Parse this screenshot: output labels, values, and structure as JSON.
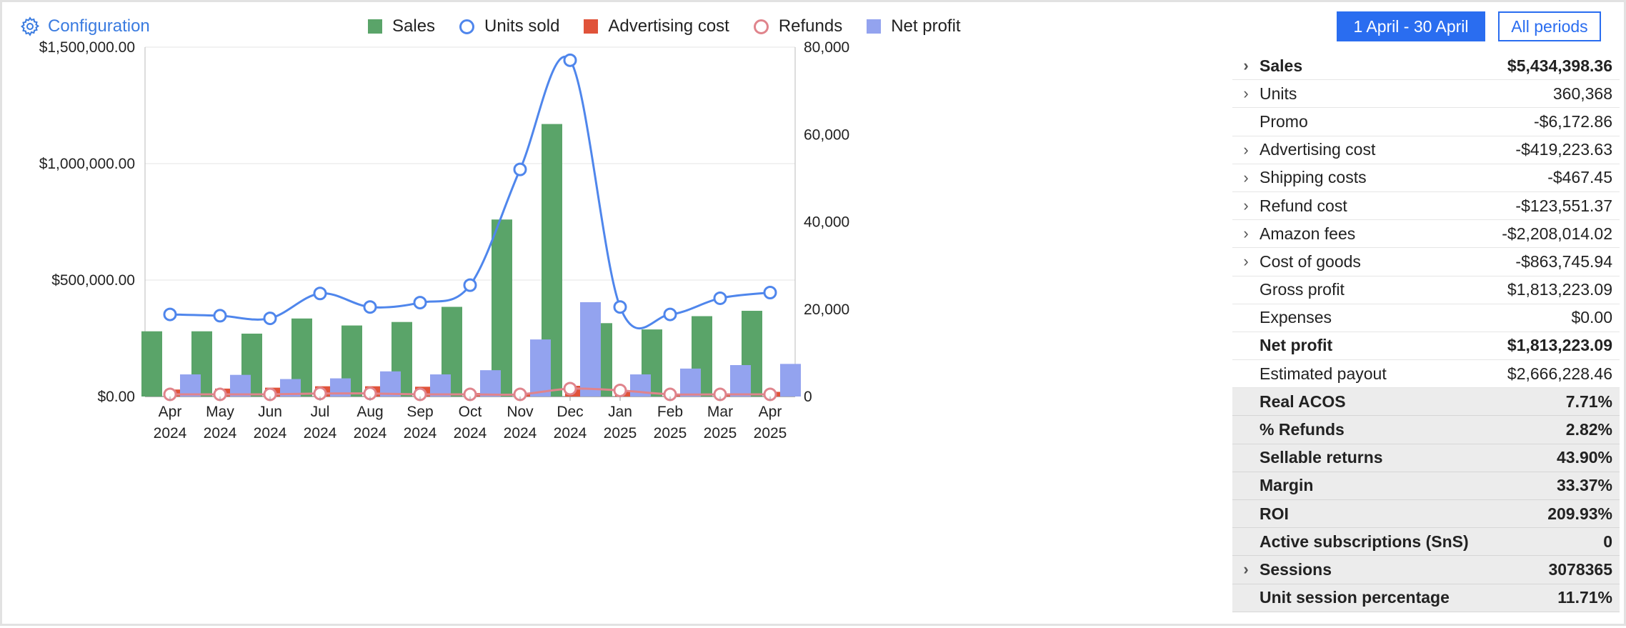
{
  "header": {
    "config_label": "Configuration",
    "config_icon": "gear-icon",
    "period_button": "1 April - 30 April",
    "all_periods_button": "All periods"
  },
  "legend": [
    {
      "name": "Sales",
      "kind": "bar",
      "color": "#5aa469"
    },
    {
      "name": "Units sold",
      "kind": "ring",
      "color": "#4f86ec"
    },
    {
      "name": "Advertising cost",
      "kind": "bar",
      "color": "#e0533a"
    },
    {
      "name": "Refunds",
      "kind": "ring",
      "color": "#e0848c"
    },
    {
      "name": "Net profit",
      "kind": "bar",
      "color": "#93a3ef"
    }
  ],
  "chart_data": {
    "type": "bar",
    "categories": [
      [
        "Apr",
        "2024"
      ],
      [
        "May",
        "2024"
      ],
      [
        "Jun",
        "2024"
      ],
      [
        "Jul",
        "2024"
      ],
      [
        "Aug",
        "2024"
      ],
      [
        "Sep",
        "2024"
      ],
      [
        "Oct",
        "2024"
      ],
      [
        "Nov",
        "2024"
      ],
      [
        "Dec",
        "2024"
      ],
      [
        "Jan",
        "2025"
      ],
      [
        "Feb",
        "2025"
      ],
      [
        "Mar",
        "2025"
      ],
      [
        "Apr",
        "2025"
      ]
    ],
    "left_axis": {
      "ticks": [
        "$0.00",
        "$500,000.00",
        "$1,000,000.00",
        "$1,500,000.00"
      ],
      "ylim": [
        0,
        1500000
      ]
    },
    "right_axis": {
      "ticks": [
        "0",
        "20,000",
        "40,000",
        "60,000",
        "80,000"
      ],
      "ylim": [
        0,
        80000
      ]
    },
    "grid": true,
    "legend_position": "top",
    "series": [
      {
        "name": "Sales",
        "type": "bar",
        "axis": "left",
        "color": "#5aa469",
        "values": [
          280000,
          280000,
          270000,
          335000,
          305000,
          320000,
          385000,
          760000,
          1170000,
          315000,
          288000,
          345000,
          368000
        ]
      },
      {
        "name": "Advertising cost",
        "type": "bar",
        "axis": "left",
        "color": "#e0533a",
        "values": [
          30000,
          34000,
          38000,
          44000,
          44000,
          42000,
          15000,
          12000,
          46000,
          20000,
          6000,
          10000,
          20000
        ]
      },
      {
        "name": "Net profit",
        "type": "bar",
        "axis": "left",
        "color": "#93a3ef",
        "values": [
          95000,
          93000,
          75000,
          78000,
          108000,
          95000,
          113000,
          245000,
          405000,
          95000,
          120000,
          135000,
          140000
        ]
      },
      {
        "name": "Units sold",
        "type": "line",
        "axis": "right",
        "color": "#4f86ec",
        "values": [
          18800,
          18500,
          17900,
          23600,
          20500,
          21500,
          25500,
          52000,
          77000,
          20500,
          18800,
          22500,
          23800
        ]
      },
      {
        "name": "Refunds",
        "type": "line",
        "axis": "right",
        "color": "#e0848c",
        "values": [
          500,
          500,
          500,
          700,
          700,
          500,
          500,
          500,
          1800,
          1400,
          500,
          500,
          500
        ]
      }
    ]
  },
  "summary": [
    {
      "label": "Sales",
      "value": "$5,434,398.36",
      "chevron": true,
      "style": "bold"
    },
    {
      "label": "Units",
      "value": "360,368",
      "chevron": true,
      "style": "normal"
    },
    {
      "label": "Promo",
      "value": "-$6,172.86",
      "chevron": false,
      "style": "normal"
    },
    {
      "label": "Advertising cost",
      "value": "-$419,223.63",
      "chevron": true,
      "style": "normal"
    },
    {
      "label": "Shipping costs",
      "value": "-$467.45",
      "chevron": true,
      "style": "normal"
    },
    {
      "label": "Refund cost",
      "value": "-$123,551.37",
      "chevron": true,
      "style": "normal"
    },
    {
      "label": "Amazon fees",
      "value": "-$2,208,014.02",
      "chevron": true,
      "style": "normal"
    },
    {
      "label": "Cost of goods",
      "value": "-$863,745.94",
      "chevron": true,
      "style": "normal"
    },
    {
      "label": "Gross profit",
      "value": "$1,813,223.09",
      "chevron": false,
      "style": "normal"
    },
    {
      "label": "Expenses",
      "value": "$0.00",
      "chevron": false,
      "style": "normal"
    },
    {
      "label": "Net profit",
      "value": "$1,813,223.09",
      "chevron": false,
      "style": "bold"
    },
    {
      "label": "Estimated payout",
      "value": "$2,666,228.46",
      "chevron": false,
      "style": "normal"
    },
    {
      "label": "Real ACOS",
      "value": "7.71%",
      "chevron": false,
      "style": "grey"
    },
    {
      "label": "% Refunds",
      "value": "2.82%",
      "chevron": false,
      "style": "grey"
    },
    {
      "label": "Sellable returns",
      "value": "43.90%",
      "chevron": false,
      "style": "grey"
    },
    {
      "label": "Margin",
      "value": "33.37%",
      "chevron": false,
      "style": "grey"
    },
    {
      "label": "ROI",
      "value": "209.93%",
      "chevron": false,
      "style": "grey"
    },
    {
      "label": "Active subscriptions (SnS)",
      "value": "0",
      "chevron": false,
      "style": "grey"
    },
    {
      "label": "Sessions",
      "value": "3078365",
      "chevron": true,
      "style": "grey"
    },
    {
      "label": "Unit session percentage",
      "value": "11.71%",
      "chevron": false,
      "style": "grey"
    }
  ]
}
